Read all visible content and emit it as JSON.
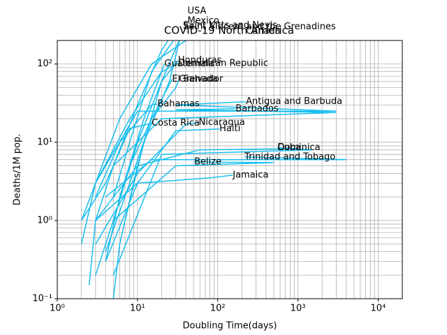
{
  "chart_data": {
    "type": "line",
    "title": "COVID-19  North America",
    "x_label": "Doubling Time(days)",
    "y_label": "Deaths/1M pop.",
    "x_scale": "log",
    "y_scale": "log",
    "grid": true,
    "color": "#17bfef",
    "xlim": [
      1,
      20000
    ],
    "ylim": [
      0.1,
      200
    ],
    "xticks": [
      {
        "value": 1,
        "label": "10⁰"
      },
      {
        "value": 10,
        "label": "10¹"
      },
      {
        "value": 100,
        "label": "10²"
      },
      {
        "value": 1000,
        "label": "10³"
      },
      {
        "value": 10000,
        "label": "10⁴"
      }
    ],
    "yticks": [
      {
        "value": 0.1,
        "label": "10⁻¹"
      },
      {
        "value": 1,
        "label": "10⁰"
      },
      {
        "value": 10,
        "label": "10¹"
      },
      {
        "value": 100,
        "label": "10²"
      }
    ],
    "xminorticks": [
      2,
      3,
      4,
      5,
      6,
      7,
      8,
      9,
      20,
      30,
      40,
      50,
      60,
      70,
      80,
      90,
      200,
      300,
      400,
      500,
      600,
      700,
      800,
      900,
      2000,
      3000,
      4000,
      5000,
      6000,
      7000,
      8000,
      9000,
      20000
    ],
    "yminorticks": [
      0.2,
      0.3,
      0.4,
      0.5,
      0.6,
      0.7,
      0.8,
      0.9,
      2,
      3,
      4,
      5,
      6,
      7,
      8,
      9,
      20,
      30,
      40,
      50,
      60,
      70,
      80,
      90,
      200
    ],
    "series": [
      {
        "name": "USA",
        "x": [
          2.5,
          3,
          5,
          10,
          20,
          42
        ],
        "values": [
          0.15,
          1,
          5,
          30,
          150,
          475
        ]
      },
      {
        "name": "Mexico",
        "x": [
          5,
          6,
          10,
          20,
          42
        ],
        "values": [
          0.1,
          0.5,
          5,
          60,
          355
        ]
      },
      {
        "name": "Saint Vincent and the Grenadines",
        "x": [
          5,
          8,
          15,
          37
        ],
        "values": [
          2,
          10,
          80,
          300
        ]
      },
      {
        "name": "Saint Kitts and Nevis",
        "x": [
          7,
          12,
          25,
          37
        ],
        "values": [
          1,
          10,
          60,
          310
        ]
      },
      {
        "name": "Canada",
        "x": [
          2,
          3,
          6,
          15,
          40,
          225
        ],
        "values": [
          0.5,
          3,
          20,
          100,
          200,
          262
        ]
      },
      {
        "name": "Honduras",
        "x": [
          3,
          5,
          10,
          20,
          32
        ],
        "values": [
          0.2,
          1,
          10,
          60,
          111
        ]
      },
      {
        "name": "Guatemala",
        "x": [
          4,
          6,
          12,
          21.6
        ],
        "values": [
          0.3,
          2,
          20,
          100
        ]
      },
      {
        "name": "Dominican Republic",
        "x": [
          2,
          3,
          8,
          20,
          32
        ],
        "values": [
          1,
          3,
          20,
          80,
          102
        ]
      },
      {
        "name": "El Salvador",
        "x": [
          4,
          8,
          15,
          27
        ],
        "values": [
          0.4,
          3,
          20,
          64
        ]
      },
      {
        "name": "Grenada",
        "x": [
          8,
          15,
          30,
          33
        ],
        "values": [
          5,
          20,
          50,
          64
        ]
      },
      {
        "name": "Antigua and Barbuda",
        "x": [
          3,
          10,
          3000,
          30,
          225
        ],
        "values": [
          3,
          25,
          25,
          30,
          33
        ]
      },
      {
        "name": "Barbados",
        "x": [
          5,
          20,
          3000,
          30,
          167
        ],
        "values": [
          5,
          20,
          24,
          26,
          26.7
        ]
      },
      {
        "name": "Bahamas",
        "x": [
          3,
          6,
          15,
          17.7
        ],
        "values": [
          2,
          10,
          30,
          31
        ]
      },
      {
        "name": "Costa Rica",
        "x": [
          2,
          4,
          8,
          15
        ],
        "values": [
          1,
          3,
          15,
          17.5
        ]
      },
      {
        "name": "Nicaragua",
        "x": [
          3,
          10,
          40,
          58
        ],
        "values": [
          0.5,
          4,
          17,
          17.9
        ]
      },
      {
        "name": "Haiti",
        "x": [
          4,
          10,
          30,
          105
        ],
        "values": [
          0.3,
          3,
          14,
          14.8
        ]
      },
      {
        "name": "Dominica",
        "x": [
          5,
          20,
          1500,
          557
        ],
        "values": [
          0.2,
          7,
          8,
          8.5
        ]
      },
      {
        "name": "Cuba",
        "x": [
          3,
          10,
          60,
          1000,
          557
        ],
        "values": [
          1,
          5,
          8,
          8.3,
          8.5
        ]
      },
      {
        "name": "Trinidad and Tobago",
        "x": [
          4,
          15,
          4000,
          216
        ],
        "values": [
          2,
          6,
          6,
          6.5
        ]
      },
      {
        "name": "Belize",
        "x": [
          5,
          30,
          500,
          51
        ],
        "values": [
          1,
          5,
          5.5,
          5.6
        ]
      },
      {
        "name": "Jamaica",
        "x": [
          3,
          10,
          80,
          154
        ],
        "values": [
          1,
          3,
          3.5,
          3.8
        ]
      }
    ]
  }
}
